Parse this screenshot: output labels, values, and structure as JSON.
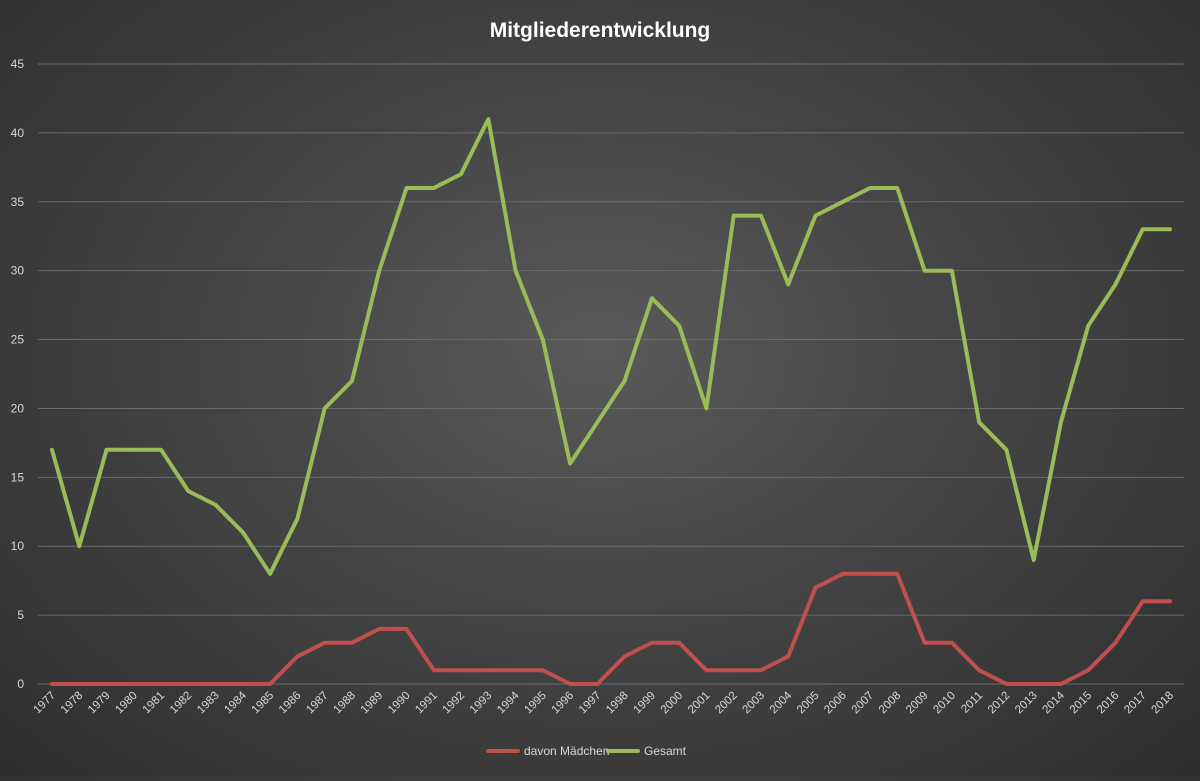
{
  "chart_data": {
    "type": "line",
    "title": "Mitgliederentwicklung",
    "xlabel": "",
    "ylabel": "",
    "ylim": [
      0,
      45
    ],
    "yticks": [
      0,
      5,
      10,
      15,
      20,
      25,
      30,
      35,
      40,
      45
    ],
    "grid": true,
    "legend": "bottom",
    "categories": [
      "1977",
      "1978",
      "1979",
      "1980",
      "1981",
      "1982",
      "1983",
      "1984",
      "1985",
      "1986",
      "1987",
      "1988",
      "1989",
      "1990",
      "1991",
      "1992",
      "1993",
      "1994",
      "1995",
      "1996",
      "1997",
      "1998",
      "1999",
      "2000",
      "2001",
      "2002",
      "2003",
      "2004",
      "2005",
      "2006",
      "2007",
      "2008",
      "2009",
      "2010",
      "2011",
      "2012",
      "2013",
      "2014",
      "2015",
      "2016",
      "2017",
      "2018"
    ],
    "series": [
      {
        "name": "davon Mädchen",
        "color": "#c0504d",
        "values": [
          0,
          0,
          0,
          0,
          0,
          0,
          0,
          0,
          0,
          2,
          3,
          3,
          4,
          4,
          1,
          1,
          1,
          1,
          1,
          0,
          0,
          2,
          3,
          3,
          1,
          1,
          1,
          2,
          7,
          8,
          8,
          8,
          3,
          3,
          1,
          0,
          0,
          0,
          1,
          3,
          6,
          6
        ]
      },
      {
        "name": "Gesamt",
        "color": "#9bbb59",
        "values": [
          17,
          10,
          17,
          17,
          17,
          14,
          13,
          11,
          8,
          12,
          20,
          22,
          30,
          36,
          36,
          37,
          41,
          30,
          25,
          16,
          19,
          22,
          28,
          26,
          20,
          34,
          34,
          29,
          34,
          35,
          36,
          36,
          30,
          30,
          19,
          17,
          9,
          19,
          26,
          29,
          33,
          33
        ]
      }
    ]
  }
}
